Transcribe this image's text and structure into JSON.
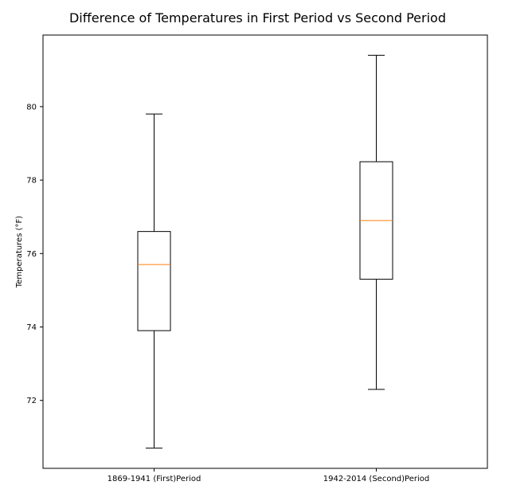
{
  "chart_data": {
    "type": "boxplot",
    "title": "Difference of Temperatures in First Period vs Second Period",
    "xlabel": "",
    "ylabel": "Temperatures (°F)",
    "categories": [
      "1869-1941 (First)Period",
      "1942-2014 (Second)Period"
    ],
    "boxes": [
      {
        "category": "1869-1941 (First)Period",
        "whisker_low": 70.7,
        "q1": 73.9,
        "median": 75.7,
        "q3": 76.6,
        "whisker_high": 79.8
      },
      {
        "category": "1942-2014 (Second)Period",
        "whisker_low": 72.3,
        "q1": 75.3,
        "median": 76.9,
        "q3": 78.5,
        "whisker_high": 81.4
      }
    ],
    "yticks": [
      72,
      74,
      76,
      78,
      80
    ],
    "ylim": [
      70.15,
      81.95
    ],
    "grid": false,
    "colors": {
      "box": "#000000",
      "whisker": "#000000",
      "median": "#ff7f0e",
      "axes": "#000000"
    }
  }
}
